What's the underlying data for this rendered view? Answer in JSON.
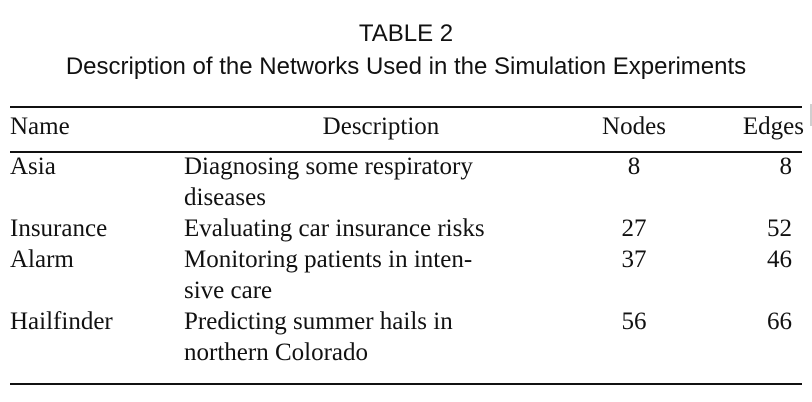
{
  "caption": {
    "number": "TABLE 2",
    "title": "Description of the Networks Used in the Simulation Experiments"
  },
  "table": {
    "headers": [
      "Name",
      "Description",
      "Nodes",
      "Edges"
    ],
    "rows": [
      {
        "name": "Asia",
        "description_lines": [
          "Diagnosing some respiratory",
          "diseases"
        ],
        "nodes": "8",
        "edges": "8"
      },
      {
        "name": "Insurance",
        "description_lines": [
          "Evaluating car insurance risks"
        ],
        "nodes": "27",
        "edges": "52"
      },
      {
        "name": "Alarm",
        "description_lines": [
          "Monitoring patients in inten-",
          "sive care"
        ],
        "nodes": "37",
        "edges": "46"
      },
      {
        "name": "Hailfinder",
        "description_lines": [
          "Predicting summer hails in",
          "northern Colorado"
        ],
        "nodes": "56",
        "edges": "66"
      }
    ]
  }
}
